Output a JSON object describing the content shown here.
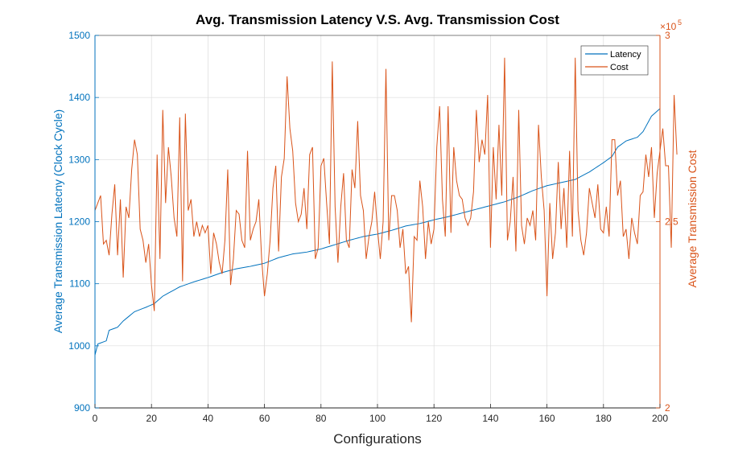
{
  "chart_data": {
    "type": "line",
    "title": "Avg. Transmission Latency V.S. Avg. Transmission Cost",
    "xlabel": "Configurations",
    "ylabel_left": "Average Transmission Latecny (Clock Cycle)",
    "ylabel_right": "Average Transmission Cost",
    "xlim": [
      0,
      200
    ],
    "ylim_left": [
      900,
      1500
    ],
    "ylim_right": [
      200000,
      300000
    ],
    "x_ticks": [
      "0",
      "20",
      "40",
      "60",
      "80",
      "100",
      "120",
      "140",
      "160",
      "180",
      "200"
    ],
    "y_left_ticks": [
      "900",
      "1000",
      "1100",
      "1200",
      "1300",
      "1400",
      "1500"
    ],
    "y_right_ticks": [
      "2",
      "2.5",
      "3"
    ],
    "y_right_exponent": {
      "base": "×10",
      "power": "5"
    },
    "grid": true,
    "legend_position": "top-right",
    "series": [
      {
        "name": "Latency",
        "axis": "left",
        "color": "#0072BD",
        "anchors": [
          [
            0,
            985
          ],
          [
            1,
            1003
          ],
          [
            4,
            1008
          ],
          [
            5,
            1025
          ],
          [
            8,
            1030
          ],
          [
            10,
            1040
          ],
          [
            14,
            1055
          ],
          [
            18,
            1062
          ],
          [
            21,
            1068
          ],
          [
            24,
            1080
          ],
          [
            30,
            1095
          ],
          [
            35,
            1103
          ],
          [
            40,
            1110
          ],
          [
            45,
            1118
          ],
          [
            50,
            1124
          ],
          [
            55,
            1128
          ],
          [
            60,
            1133
          ],
          [
            65,
            1142
          ],
          [
            70,
            1148
          ],
          [
            75,
            1151
          ],
          [
            80,
            1156
          ],
          [
            85,
            1163
          ],
          [
            90,
            1170
          ],
          [
            95,
            1176
          ],
          [
            100,
            1180
          ],
          [
            105,
            1186
          ],
          [
            110,
            1193
          ],
          [
            115,
            1197
          ],
          [
            120,
            1203
          ],
          [
            125,
            1208
          ],
          [
            130,
            1214
          ],
          [
            135,
            1220
          ],
          [
            140,
            1226
          ],
          [
            145,
            1232
          ],
          [
            150,
            1240
          ],
          [
            155,
            1250
          ],
          [
            160,
            1258
          ],
          [
            165,
            1263
          ],
          [
            170,
            1268
          ],
          [
            175,
            1280
          ],
          [
            180,
            1295
          ],
          [
            183,
            1305
          ],
          [
            185,
            1320
          ],
          [
            188,
            1330
          ],
          [
            192,
            1336
          ],
          [
            194,
            1345
          ],
          [
            197,
            1370
          ],
          [
            200,
            1382
          ]
        ]
      },
      {
        "name": "Cost",
        "axis": "right",
        "color": "#D95319",
        "values": [
          253000,
          255000,
          257000,
          244000,
          245000,
          241000,
          252000,
          260000,
          241000,
          256000,
          235000,
          254000,
          251000,
          264000,
          272000,
          268000,
          248000,
          245000,
          239000,
          244000,
          233000,
          226000,
          268000,
          240000,
          280000,
          255000,
          270000,
          262000,
          251000,
          246000,
          278000,
          234000,
          279000,
          253000,
          256000,
          246000,
          250000,
          246000,
          249000,
          247000,
          249000,
          236000,
          247000,
          244000,
          239000,
          236000,
          245000,
          264000,
          233000,
          240000,
          253000,
          252000,
          245000,
          243000,
          269000,
          245000,
          248000,
          250000,
          256000,
          240000,
          230000,
          236000,
          245000,
          259000,
          265000,
          242000,
          262000,
          267000,
          289000,
          275000,
          269000,
          255000,
          250000,
          252000,
          259000,
          248000,
          268000,
          270000,
          240000,
          243000,
          265000,
          267000,
          255000,
          244000,
          293000,
          254000,
          239000,
          254000,
          263000,
          245000,
          243000,
          264000,
          259000,
          277000,
          257000,
          253000,
          240000,
          246000,
          250000,
          258000,
          248000,
          240000,
          250000,
          291000,
          245000,
          257000,
          257000,
          253000,
          243000,
          248000,
          236000,
          238000,
          223000,
          246000,
          245000,
          261000,
          254000,
          240000,
          250000,
          244000,
          248000,
          270000,
          281000,
          256000,
          246000,
          281000,
          247000,
          270000,
          261000,
          257000,
          256000,
          251000,
          249000,
          251000,
          258000,
          280000,
          266000,
          272000,
          268000,
          284000,
          243000,
          270000,
          256000,
          276000,
          257000,
          294000,
          245000,
          250000,
          262000,
          242000,
          280000,
          249000,
          244000,
          251000,
          249000,
          253000,
          245000,
          276000,
          262000,
          253000,
          230000,
          255000,
          240000,
          247000,
          266000,
          248000,
          259000,
          243000,
          269000,
          246000,
          294000,
          253000,
          245000,
          241000,
          247000,
          259000,
          255000,
          251000,
          260000,
          248000,
          247000,
          254000,
          246000,
          272000,
          272000,
          257000,
          261000,
          246000,
          248000,
          240000,
          251000,
          247000,
          244000,
          257000,
          258000,
          268000,
          262000,
          270000,
          251000,
          263000,
          269000,
          275000,
          265000,
          265000,
          243000,
          284000,
          268000
        ]
      }
    ]
  }
}
